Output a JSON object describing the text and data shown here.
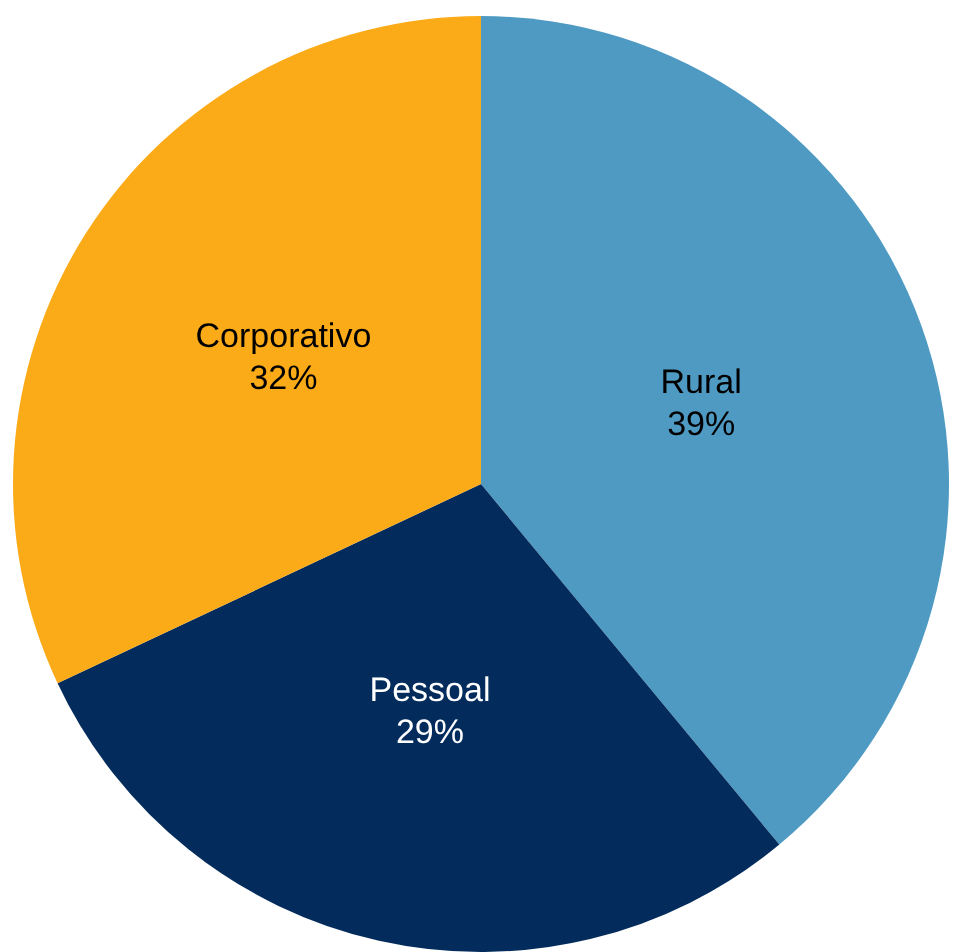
{
  "chart_data": {
    "type": "pie",
    "categories": [
      "Rural",
      "Pessoal",
      "Corporativo"
    ],
    "values": [
      39,
      29,
      32
    ],
    "colors": [
      "#4f9ac2",
      "#032c5c",
      "#fbab18"
    ],
    "value_labels": [
      "39%",
      "29%",
      "32%"
    ],
    "legend": false
  }
}
